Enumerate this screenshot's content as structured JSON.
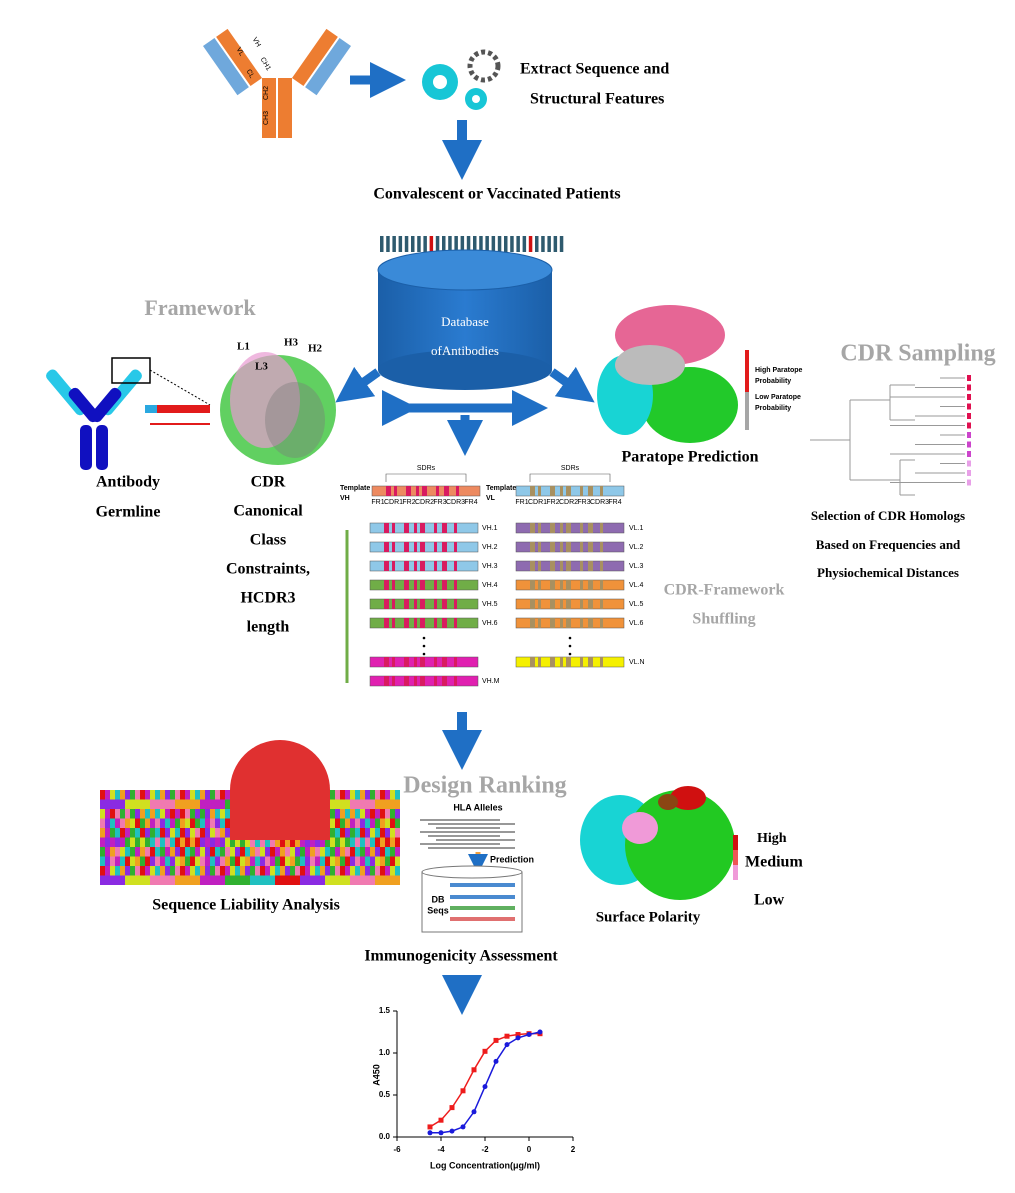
{
  "antibody": {
    "chains": [
      "VL",
      "CL",
      "VH",
      "CH1",
      "CH2",
      "CH3"
    ]
  },
  "extract": [
    "Extract Sequence and",
    "Structural Features"
  ],
  "patients": "Convalescent or Vaccinated Patients",
  "database": [
    "Database",
    "ofAntibodies"
  ],
  "framework": {
    "title": "Framework",
    "germline": [
      "Antibody",
      "Germline"
    ],
    "loops": [
      "L1",
      "L3",
      "H3",
      "H2"
    ],
    "constraints": [
      "CDR",
      "Canonical",
      "Class",
      "Constraints,",
      "HCDR3",
      "length"
    ]
  },
  "paratope": {
    "high": [
      "High Paratope",
      "Probability"
    ],
    "low": [
      "Low Paratope",
      "Probability"
    ],
    "caption": "Paratope Prediction"
  },
  "cdr_sampling": {
    "title": "CDR Sampling",
    "caption": [
      "Selection of CDR Homologs",
      "Based on Frequencies and",
      "Physiochemical Distances"
    ]
  },
  "shuffling": {
    "template_vh": [
      "Template",
      "VH"
    ],
    "template_vl": [
      "Template",
      "VL"
    ],
    "sdrs": "SDRs",
    "regions": [
      "FR1",
      "CDR1",
      "FR2",
      "CDR2",
      "FR3",
      "CDR3",
      "FR4"
    ],
    "vh": [
      "VH.1",
      "VH.2",
      "VH.3",
      "VH.4",
      "VH.5",
      "VH.6",
      "VH.M"
    ],
    "vl": [
      "VL.1",
      "VL.2",
      "VL.3",
      "VL.4",
      "VL.5",
      "VL.6",
      "VL.N"
    ],
    "caption": [
      "CDR-Framework",
      "Shuffling"
    ]
  },
  "design_ranking": {
    "title": "Design Ranking",
    "liability": "Sequence Liability Analysis",
    "hla": "HLA Alleles",
    "prediction": "Prediction",
    "db": [
      "DB",
      "Seqs"
    ],
    "immunogenicity": "Immunogenicity Assessment",
    "polarity": {
      "caption": "Surface Polarity",
      "levels": [
        "High",
        "Medium",
        "Low"
      ]
    }
  },
  "chart_data": {
    "type": "line",
    "xlabel": "Log Concentration(μg/ml)",
    "ylabel": "A450",
    "xlim": [
      -6,
      2
    ],
    "ylim": [
      0,
      1.5
    ],
    "xticks": [
      -6,
      -4,
      -2,
      0,
      2
    ],
    "yticks": [
      {
        "value": 0,
        "label": "0.0"
      },
      0.5,
      {
        "value": 1,
        "label": "1.0"
      },
      1.5
    ],
    "series": [
      {
        "color": "#ee1c1c",
        "marker": "square",
        "x": [
          -4.5,
          -4,
          -3.5,
          -3,
          -2.5,
          -2,
          -1.5,
          -1,
          -0.5,
          0,
          0.5
        ],
        "values": [
          0.12,
          0.2,
          0.35,
          0.55,
          0.8,
          1.02,
          1.15,
          1.2,
          1.22,
          1.23,
          1.23
        ]
      },
      {
        "color": "#1a1adb",
        "marker": "circle",
        "x": [
          -4.5,
          -4,
          -3.5,
          -3,
          -2.5,
          -2,
          -1.5,
          -1,
          -0.5,
          0,
          0.5
        ],
        "values": [
          0.05,
          0.05,
          0.07,
          0.12,
          0.3,
          0.6,
          0.9,
          1.1,
          1.18,
          1.22,
          1.25
        ]
      }
    ]
  }
}
